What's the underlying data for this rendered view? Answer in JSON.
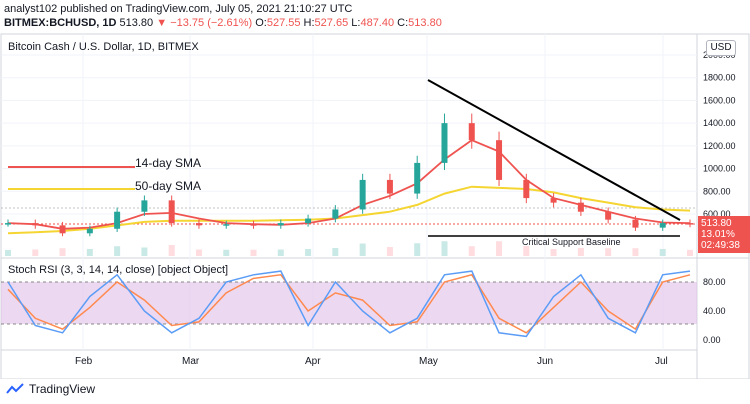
{
  "header": {
    "line1": "analyst102 published on TradingView.com, July 05, 2021 21:10:27 UTC",
    "symbol": "BITMEX:BCHUSD, 1D",
    "last": "513.80",
    "change_arrow": "▼",
    "change": "−13.75 (−2.61%)",
    "o_label": "O:",
    "o_val": "527.55",
    "h_label": "H:",
    "h_val": "527.65",
    "l_label": "L:",
    "l_val": "487.40",
    "c_label": "C:",
    "c_val": "513.80"
  },
  "chart_title": "Bitcoin Cash / U.S. Dollar, 1D, BITMEX",
  "currency": "USD",
  "price_tag": {
    "price": "513.80",
    "pct": "13.01%",
    "timer": "02:49:38"
  },
  "annotations": {
    "sma14": "14-day SMA",
    "sma50": "50-day SMA",
    "support": "Critical Support Baseline"
  },
  "rsi_title": "Stoch RSI (3, 3, 14, 14, close) [object Object]",
  "footer": {
    "brand": "TradingView"
  },
  "colors": {
    "up": "#26a69a",
    "down": "#ef5350",
    "sma14": "#ef5350",
    "sma50": "#f5d532",
    "stoch_k": "#5b9cf6",
    "stoch_d": "#ff8a50",
    "rsi_band": "#e1bee7"
  },
  "chart_data": [
    {
      "type": "line",
      "name": "price",
      "title": "Bitcoin Cash / U.S. Dollar, 1D, BITMEX",
      "x_ticks": [
        "Feb",
        "Mar",
        "Apr",
        "May",
        "Jun",
        "Jul"
      ],
      "y_ticks": [
        600,
        800,
        1000,
        1200,
        1400,
        1600,
        1800,
        2000
      ],
      "ylim": [
        300,
        2150
      ],
      "x": [
        "Jan 14",
        "Jan 21",
        "Jan 28",
        "Feb 04",
        "Feb 11",
        "Feb 18",
        "Feb 25",
        "Mar 04",
        "Mar 11",
        "Mar 18",
        "Mar 25",
        "Apr 01",
        "Apr 08",
        "Apr 15",
        "Apr 22",
        "Apr 29",
        "May 06",
        "May 13",
        "May 20",
        "May 27",
        "Jun 03",
        "Jun 10",
        "Jun 17",
        "Jun 24",
        "Jul 01",
        "Jul 05"
      ],
      "series": [
        {
          "name": "close",
          "values": [
            520,
            500,
            430,
            470,
            620,
            720,
            520,
            500,
            510,
            500,
            520,
            560,
            640,
            900,
            780,
            1050,
            1400,
            1250,
            900,
            740,
            700,
            620,
            550,
            480,
            520,
            514
          ]
        },
        {
          "name": "14-day SMA",
          "values": [
            520,
            510,
            470,
            480,
            520,
            600,
            610,
            560,
            520,
            510,
            505,
            520,
            560,
            680,
            760,
            870,
            1080,
            1250,
            1150,
            900,
            740,
            680,
            620,
            560,
            525,
            520
          ]
        },
        {
          "name": "50-day SMA",
          "values": [
            430,
            440,
            450,
            470,
            500,
            530,
            540,
            540,
            540,
            540,
            545,
            550,
            560,
            590,
            620,
            680,
            780,
            840,
            830,
            820,
            790,
            740,
            700,
            660,
            640,
            630
          ]
        }
      ],
      "annotations": [
        "14-day SMA",
        "50-day SMA",
        "Critical Support Baseline"
      ]
    },
    {
      "type": "line",
      "name": "Stoch RSI",
      "title": "Stoch RSI (3, 3, 14, 14, close) [object Object]",
      "y_ticks": [
        0,
        40,
        80
      ],
      "ylim": [
        -10,
        100
      ],
      "series": [
        {
          "name": "K",
          "values": [
            80,
            20,
            10,
            60,
            90,
            40,
            10,
            30,
            80,
            90,
            95,
            20,
            80,
            40,
            10,
            30,
            90,
            95,
            10,
            5,
            60,
            90,
            30,
            10,
            90,
            95
          ]
        },
        {
          "name": "D",
          "values": [
            70,
            30,
            15,
            45,
            80,
            55,
            20,
            25,
            65,
            85,
            90,
            40,
            65,
            55,
            20,
            25,
            80,
            90,
            30,
            10,
            45,
            80,
            40,
            15,
            80,
            90
          ]
        }
      ]
    }
  ]
}
